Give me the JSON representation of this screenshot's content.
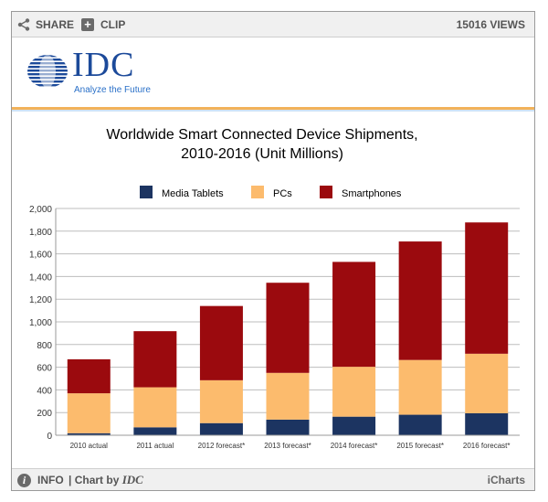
{
  "topbar": {
    "share_label": "SHARE",
    "clip_label": "CLIP",
    "views_label": "15016 VIEWS"
  },
  "logo": {
    "text": "IDC",
    "tagline": "Analyze the Future"
  },
  "footer": {
    "info_label": "INFO",
    "chart_by_prefix": "| Chart by",
    "chart_by_source": "IDC",
    "brand_label": "iCharts"
  },
  "colors": {
    "tablets": "#1c3461",
    "pcs": "#fcbb6d",
    "smartphones": "#9b0a0e",
    "logo_blue": "#1c4a9a",
    "accent": "#f2b25a"
  },
  "chart_data": {
    "type": "bar",
    "stacked": true,
    "title": "Worldwide Smart Connected Device Shipments,",
    "subtitle": "2010-2016 (Unit Millions)",
    "categories": [
      "2010 actual",
      "2011 actual",
      "2012 forecast*",
      "2013 forecast*",
      "2014 forecast*",
      "2015 forecast*",
      "2016 forecast*"
    ],
    "series": [
      {
        "name": "Media Tablets",
        "color": "#1c3461",
        "values": [
          18,
          70,
          107,
          138,
          164,
          181,
          194
        ]
      },
      {
        "name": "PCs",
        "color": "#fcbb6d",
        "values": [
          352,
          353,
          378,
          412,
          440,
          483,
          525
        ]
      },
      {
        "name": "Smartphones",
        "color": "#9b0a0e",
        "values": [
          300,
          495,
          655,
          795,
          925,
          1045,
          1158
        ]
      }
    ],
    "ylim": [
      0,
      2000
    ],
    "yticks": [
      0,
      200,
      400,
      600,
      800,
      1000,
      1200,
      1400,
      1600,
      1800,
      2000
    ],
    "ytick_labels": [
      "0",
      "200",
      "400",
      "600",
      "800",
      "1,000",
      "1,200",
      "1,400",
      "1,600",
      "1,800",
      "2,000"
    ],
    "grid": true,
    "legend_position": "top-center"
  }
}
